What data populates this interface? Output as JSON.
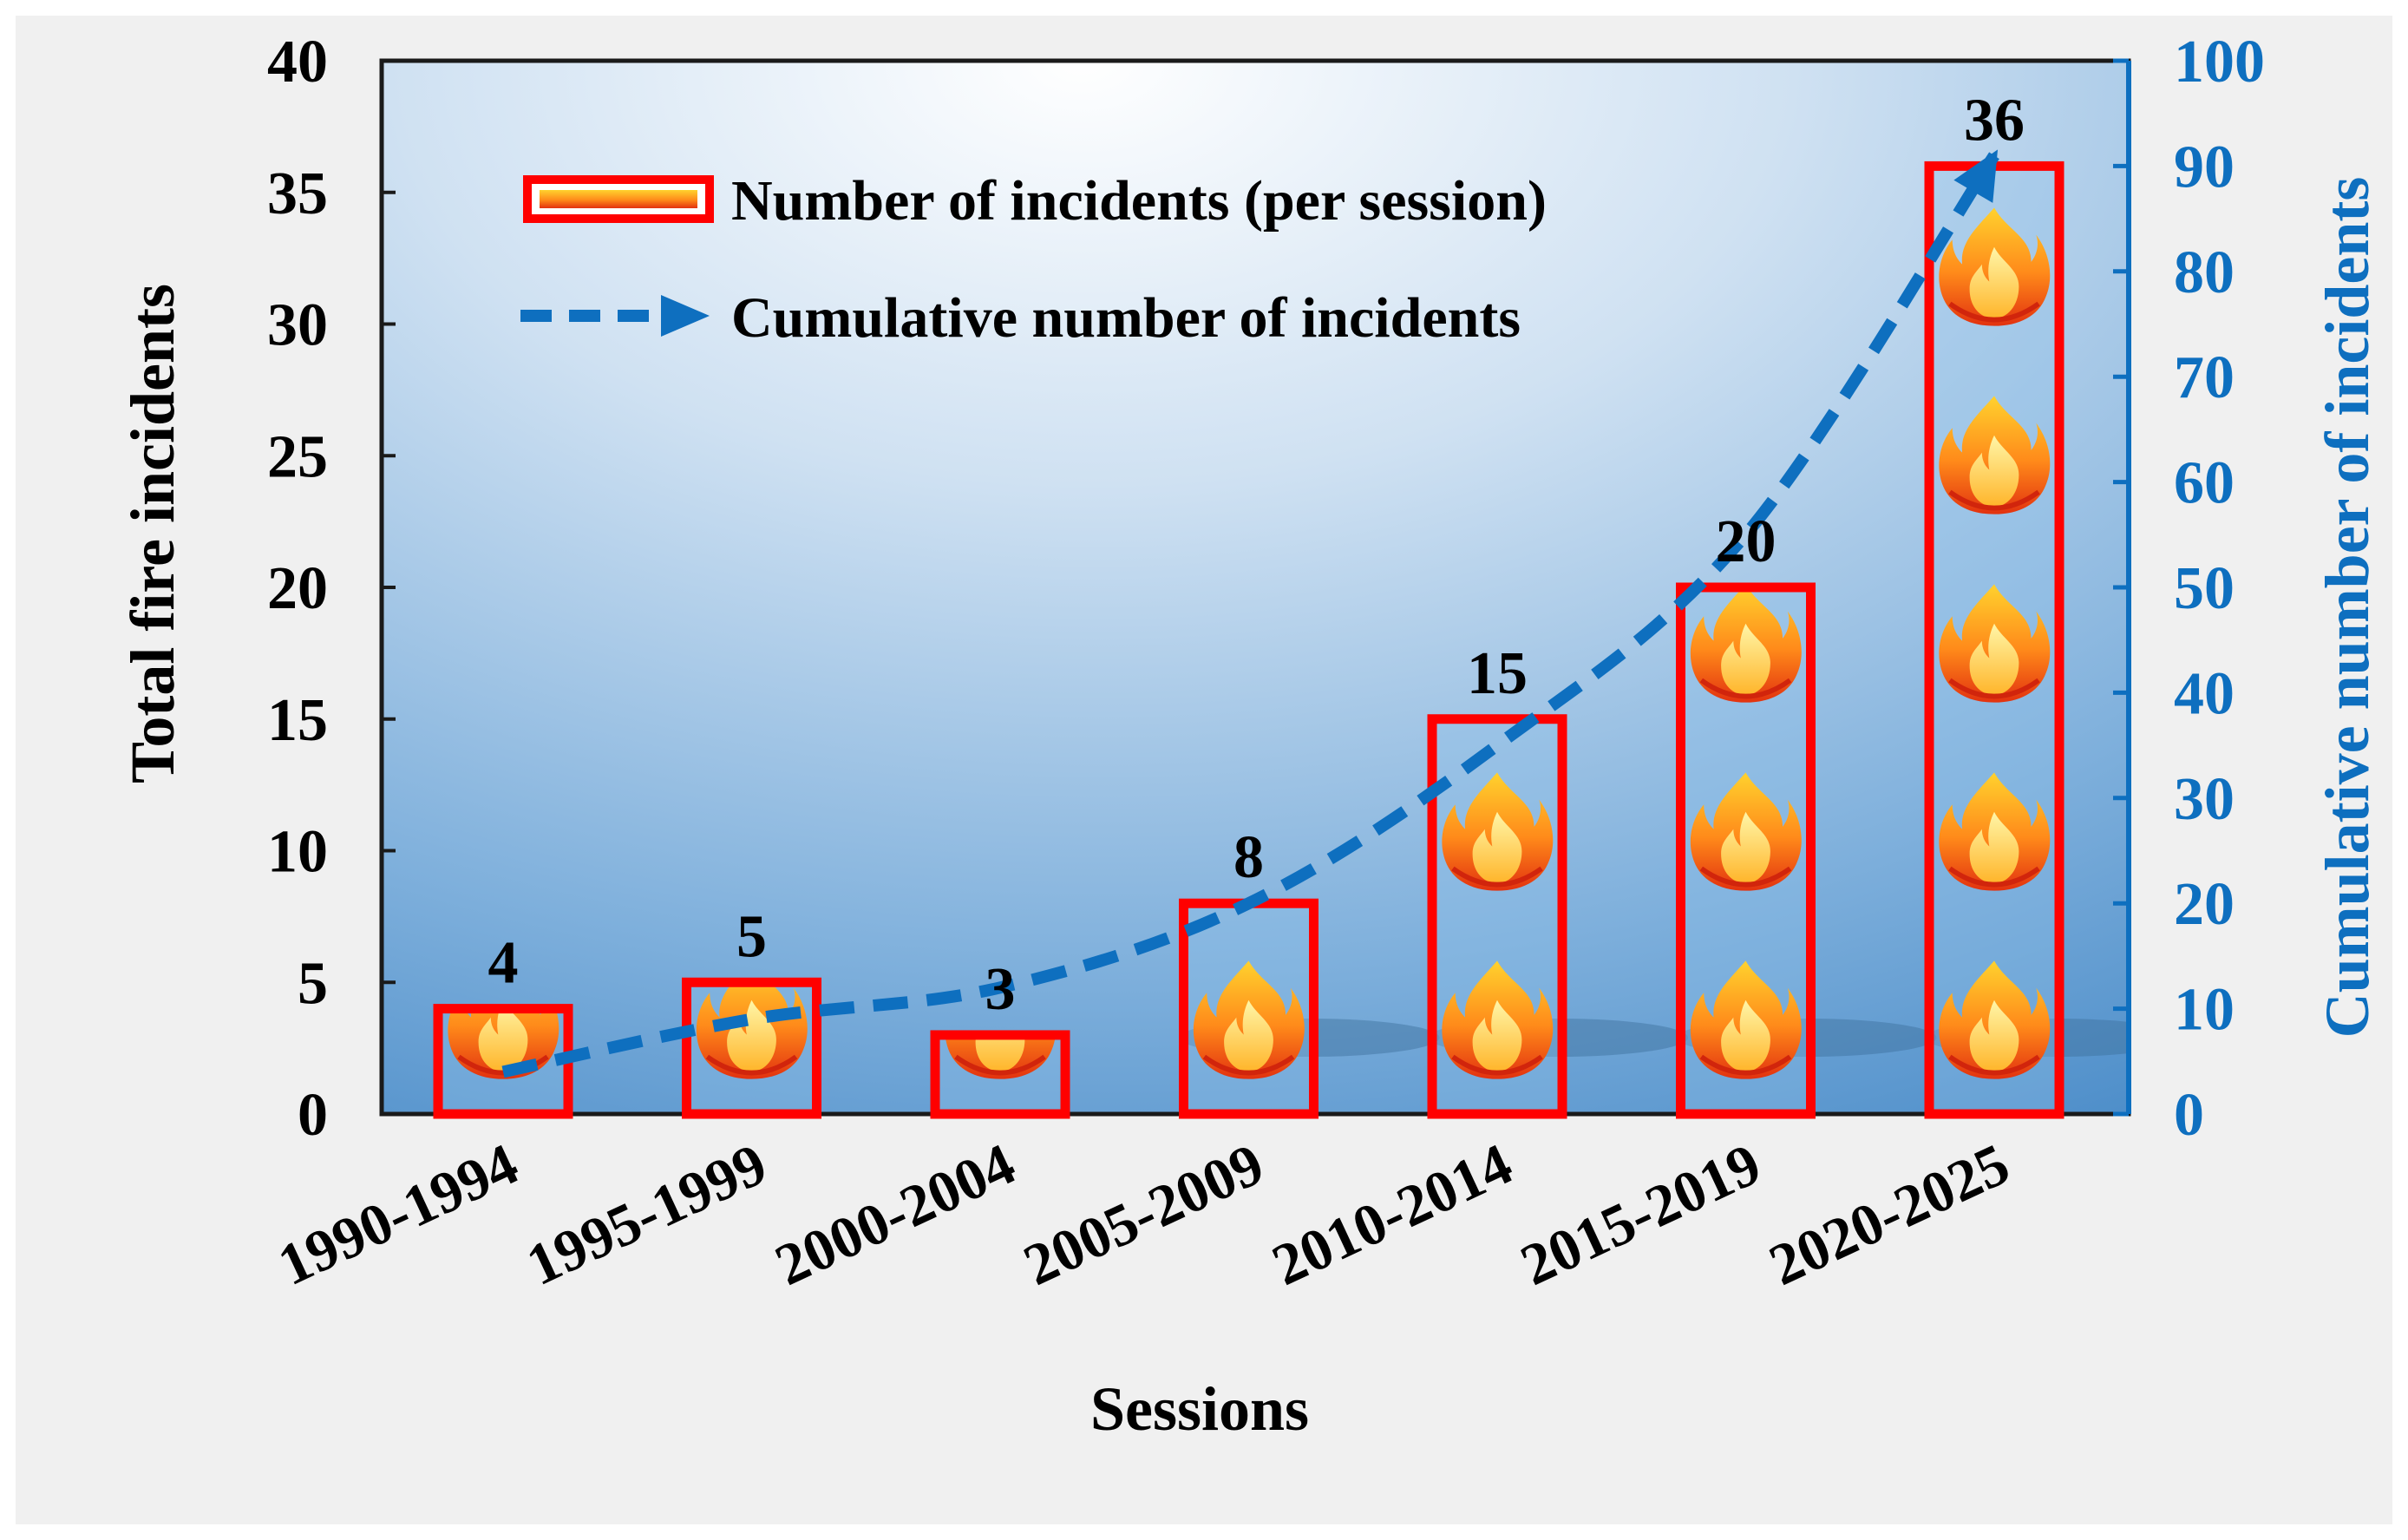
{
  "chart_data": {
    "type": "bar",
    "categories": [
      "1990-1994",
      "1995-1999",
      "2000-2004",
      "2005-2009",
      "2010-2014",
      "2015-2019",
      "2020-2025"
    ],
    "series": [
      {
        "name": "Number of incidents (per session)",
        "type": "bar",
        "axis": "left",
        "values": [
          4,
          5,
          3,
          8,
          15,
          20,
          36
        ]
      },
      {
        "name": "Cumulative number of incidents",
        "type": "line",
        "style": "dashed-arrow",
        "axis": "right",
        "values": [
          4,
          9,
          12,
          20,
          35,
          55,
          91
        ]
      }
    ],
    "data_labels": [
      "4",
      "5",
      "3",
      "8",
      "15",
      "20",
      "36"
    ],
    "xlabel": "Sessions",
    "ylabel": "Total fire incidents",
    "y2label": "Cumulative number of incidents",
    "ylim": [
      0,
      40
    ],
    "y2lim": [
      0,
      100
    ],
    "yticks": [
      "0",
      "5",
      "10",
      "15",
      "20",
      "25",
      "30",
      "35",
      "40"
    ],
    "y2ticks": [
      "0",
      "10",
      "20",
      "30",
      "40",
      "50",
      "60",
      "70",
      "80",
      "90",
      "100"
    ],
    "legend": {
      "placement": "top-left",
      "entries": [
        "Number of incidents (per session)",
        "Cumulative number of incidents"
      ]
    },
    "grid": false,
    "colors": {
      "bar_outline": "#ff0000",
      "line": "#0e6fbf",
      "right_axis": "#0e6fbf",
      "text": "#000000"
    }
  }
}
